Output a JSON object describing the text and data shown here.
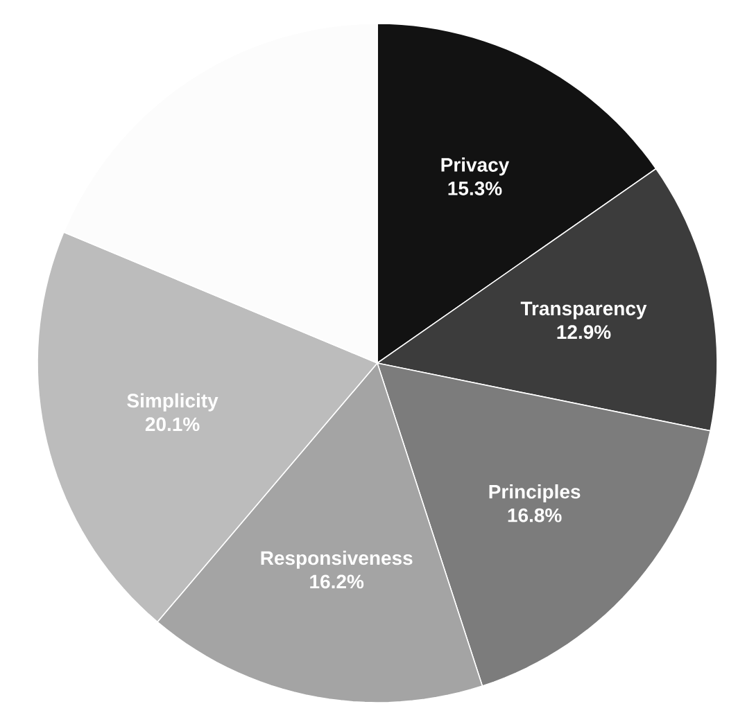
{
  "chart_data": {
    "type": "pie",
    "categories": [
      "Privacy",
      "Transparency",
      "Principles",
      "Responsiveness",
      "Simplicity",
      null
    ],
    "values": [
      15.3,
      12.9,
      16.8,
      16.2,
      20.1,
      18.7
    ],
    "value_labels": [
      "15.3%",
      "12.9%",
      "16.8%",
      "16.2%",
      "20.1%",
      null
    ],
    "colors": [
      "#121212",
      "#3c3c3c",
      "#7c7c7c",
      "#a4a4a4",
      "#bcbcbc",
      "#fcfcfc"
    ]
  }
}
